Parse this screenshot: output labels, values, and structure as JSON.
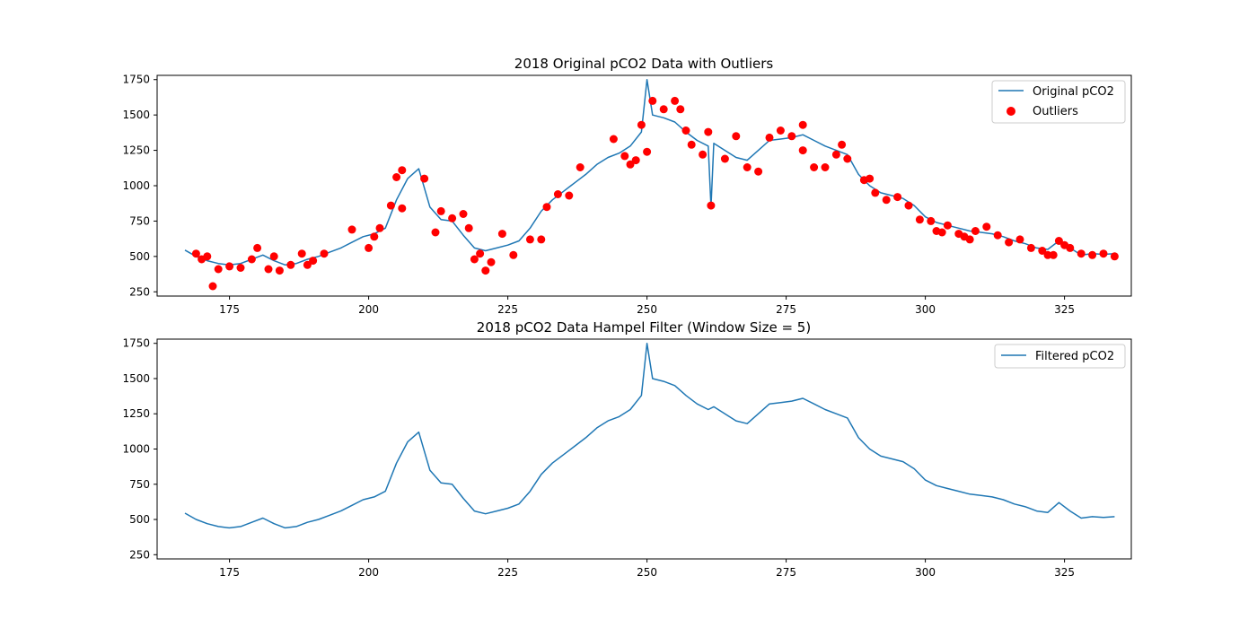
{
  "chart_data": [
    {
      "type": "line",
      "title": "2018 Original pCO2 Data with Outliers",
      "xlabel": "",
      "ylabel": "",
      "xlim": [
        162,
        337
      ],
      "ylim": [
        220,
        1780
      ],
      "xticks": [
        175,
        200,
        225,
        250,
        275,
        300,
        325
      ],
      "yticks": [
        250,
        500,
        750,
        1000,
        1250,
        1500,
        1750
      ],
      "grid": false,
      "legend_position": "top-right",
      "series": [
        {
          "name": "Original pCO2",
          "kind": "line",
          "color": "#1f77b4",
          "points": [
            [
              167,
              545
            ],
            [
              169,
              500
            ],
            [
              171,
              470
            ],
            [
              173,
              450
            ],
            [
              175,
              440
            ],
            [
              177,
              450
            ],
            [
              179,
              480
            ],
            [
              181,
              510
            ],
            [
              183,
              470
            ],
            [
              185,
              440
            ],
            [
              187,
              450
            ],
            [
              189,
              480
            ],
            [
              191,
              500
            ],
            [
              193,
              530
            ],
            [
              195,
              560
            ],
            [
              197,
              600
            ],
            [
              199,
              640
            ],
            [
              201,
              660
            ],
            [
              203,
              700
            ],
            [
              205,
              900
            ],
            [
              207,
              1050
            ],
            [
              209,
              1120
            ],
            [
              211,
              850
            ],
            [
              213,
              760
            ],
            [
              215,
              750
            ],
            [
              217,
              650
            ],
            [
              219,
              560
            ],
            [
              221,
              540
            ],
            [
              223,
              560
            ],
            [
              225,
              580
            ],
            [
              227,
              610
            ],
            [
              229,
              700
            ],
            [
              231,
              820
            ],
            [
              233,
              900
            ],
            [
              235,
              960
            ],
            [
              237,
              1020
            ],
            [
              239,
              1080
            ],
            [
              241,
              1150
            ],
            [
              243,
              1200
            ],
            [
              245,
              1230
            ],
            [
              247,
              1280
            ],
            [
              249,
              1380
            ],
            [
              250,
              1750
            ],
            [
              251,
              1500
            ],
            [
              253,
              1480
            ],
            [
              255,
              1450
            ],
            [
              257,
              1380
            ],
            [
              259,
              1320
            ],
            [
              261,
              1280
            ],
            [
              261.5,
              850
            ],
            [
              262,
              1300
            ],
            [
              264,
              1250
            ],
            [
              266,
              1200
            ],
            [
              268,
              1180
            ],
            [
              270,
              1250
            ],
            [
              272,
              1320
            ],
            [
              274,
              1330
            ],
            [
              276,
              1340
            ],
            [
              278,
              1360
            ],
            [
              280,
              1320
            ],
            [
              282,
              1280
            ],
            [
              284,
              1250
            ],
            [
              286,
              1220
            ],
            [
              288,
              1080
            ],
            [
              290,
              1000
            ],
            [
              292,
              950
            ],
            [
              294,
              930
            ],
            [
              296,
              910
            ],
            [
              298,
              860
            ],
            [
              300,
              780
            ],
            [
              302,
              740
            ],
            [
              304,
              720
            ],
            [
              306,
              700
            ],
            [
              308,
              680
            ],
            [
              310,
              670
            ],
            [
              312,
              660
            ],
            [
              314,
              640
            ],
            [
              316,
              610
            ],
            [
              318,
              590
            ],
            [
              320,
              560
            ],
            [
              322,
              550
            ],
            [
              324,
              610
            ],
            [
              326,
              560
            ],
            [
              328,
              510
            ],
            [
              330,
              520
            ],
            [
              332,
              515
            ],
            [
              334,
              520
            ]
          ]
        },
        {
          "name": "Outliers",
          "kind": "scatter",
          "color": "#ff0000",
          "points": [
            [
              169,
              520
            ],
            [
              170,
              480
            ],
            [
              171,
              500
            ],
            [
              172,
              290
            ],
            [
              173,
              410
            ],
            [
              175,
              430
            ],
            [
              177,
              420
            ],
            [
              179,
              480
            ],
            [
              180,
              560
            ],
            [
              182,
              410
            ],
            [
              183,
              500
            ],
            [
              184,
              400
            ],
            [
              186,
              440
            ],
            [
              188,
              520
            ],
            [
              189,
              440
            ],
            [
              190,
              470
            ],
            [
              192,
              520
            ],
            [
              197,
              690
            ],
            [
              200,
              560
            ],
            [
              201,
              640
            ],
            [
              202,
              700
            ],
            [
              204,
              860
            ],
            [
              205,
              1060
            ],
            [
              206,
              840
            ],
            [
              206,
              1110
            ],
            [
              210,
              1050
            ],
            [
              212,
              670
            ],
            [
              213,
              820
            ],
            [
              215,
              770
            ],
            [
              217,
              800
            ],
            [
              218,
              700
            ],
            [
              219,
              480
            ],
            [
              220,
              520
            ],
            [
              221,
              400
            ],
            [
              222,
              460
            ],
            [
              224,
              660
            ],
            [
              226,
              510
            ],
            [
              229,
              620
            ],
            [
              231,
              620
            ],
            [
              232,
              850
            ],
            [
              234,
              940
            ],
            [
              236,
              930
            ],
            [
              238,
              1130
            ],
            [
              244,
              1330
            ],
            [
              246,
              1210
            ],
            [
              247,
              1150
            ],
            [
              248,
              1180
            ],
            [
              249,
              1430
            ],
            [
              250,
              1240
            ],
            [
              251,
              1600
            ],
            [
              253,
              1540
            ],
            [
              255,
              1600
            ],
            [
              256,
              1540
            ],
            [
              257,
              1390
            ],
            [
              258,
              1290
            ],
            [
              260,
              1220
            ],
            [
              261,
              1380
            ],
            [
              261.5,
              860
            ],
            [
              264,
              1190
            ],
            [
              266,
              1350
            ],
            [
              268,
              1130
            ],
            [
              270,
              1100
            ],
            [
              272,
              1340
            ],
            [
              274,
              1390
            ],
            [
              276,
              1350
            ],
            [
              278,
              1430
            ],
            [
              278,
              1250
            ],
            [
              280,
              1130
            ],
            [
              282,
              1130
            ],
            [
              284,
              1220
            ],
            [
              285,
              1290
            ],
            [
              286,
              1190
            ],
            [
              289,
              1040
            ],
            [
              290,
              1050
            ],
            [
              291,
              950
            ],
            [
              293,
              900
            ],
            [
              295,
              920
            ],
            [
              297,
              860
            ],
            [
              299,
              760
            ],
            [
              301,
              750
            ],
            [
              302,
              680
            ],
            [
              303,
              670
            ],
            [
              304,
              720
            ],
            [
              306,
              660
            ],
            [
              307,
              640
            ],
            [
              308,
              620
            ],
            [
              309,
              680
            ],
            [
              311,
              710
            ],
            [
              313,
              650
            ],
            [
              315,
              600
            ],
            [
              317,
              620
            ],
            [
              319,
              560
            ],
            [
              321,
              540
            ],
            [
              322,
              510
            ],
            [
              323,
              510
            ],
            [
              324,
              610
            ],
            [
              325,
              580
            ],
            [
              326,
              560
            ],
            [
              328,
              520
            ],
            [
              330,
              510
            ],
            [
              332,
              520
            ],
            [
              334,
              500
            ]
          ]
        }
      ]
    },
    {
      "type": "line",
      "title": "2018 pCO2 Data Hampel Filter (Window Size = 5)",
      "xlabel": "",
      "ylabel": "",
      "xlim": [
        162,
        337
      ],
      "ylim": [
        220,
        1780
      ],
      "xticks": [
        175,
        200,
        225,
        250,
        275,
        300,
        325
      ],
      "yticks": [
        250,
        500,
        750,
        1000,
        1250,
        1500,
        1750
      ],
      "grid": false,
      "legend_position": "top-right",
      "series": [
        {
          "name": "Filtered pCO2",
          "kind": "line",
          "color": "#1f77b4",
          "points": [
            [
              167,
              545
            ],
            [
              169,
              500
            ],
            [
              171,
              470
            ],
            [
              173,
              450
            ],
            [
              175,
              440
            ],
            [
              177,
              450
            ],
            [
              179,
              480
            ],
            [
              181,
              510
            ],
            [
              183,
              470
            ],
            [
              185,
              440
            ],
            [
              187,
              450
            ],
            [
              189,
              480
            ],
            [
              191,
              500
            ],
            [
              193,
              530
            ],
            [
              195,
              560
            ],
            [
              197,
              600
            ],
            [
              199,
              640
            ],
            [
              201,
              660
            ],
            [
              203,
              700
            ],
            [
              205,
              900
            ],
            [
              207,
              1050
            ],
            [
              209,
              1120
            ],
            [
              211,
              850
            ],
            [
              213,
              760
            ],
            [
              215,
              750
            ],
            [
              217,
              650
            ],
            [
              219,
              560
            ],
            [
              221,
              540
            ],
            [
              223,
              560
            ],
            [
              225,
              580
            ],
            [
              227,
              610
            ],
            [
              229,
              700
            ],
            [
              231,
              820
            ],
            [
              233,
              900
            ],
            [
              235,
              960
            ],
            [
              237,
              1020
            ],
            [
              239,
              1080
            ],
            [
              241,
              1150
            ],
            [
              243,
              1200
            ],
            [
              245,
              1230
            ],
            [
              247,
              1280
            ],
            [
              249,
              1380
            ],
            [
              250,
              1750
            ],
            [
              251,
              1500
            ],
            [
              253,
              1480
            ],
            [
              255,
              1450
            ],
            [
              257,
              1380
            ],
            [
              259,
              1320
            ],
            [
              261,
              1280
            ],
            [
              262,
              1300
            ],
            [
              264,
              1250
            ],
            [
              266,
              1200
            ],
            [
              268,
              1180
            ],
            [
              270,
              1250
            ],
            [
              272,
              1320
            ],
            [
              274,
              1330
            ],
            [
              276,
              1340
            ],
            [
              278,
              1360
            ],
            [
              280,
              1320
            ],
            [
              282,
              1280
            ],
            [
              284,
              1250
            ],
            [
              286,
              1220
            ],
            [
              288,
              1080
            ],
            [
              290,
              1000
            ],
            [
              292,
              950
            ],
            [
              294,
              930
            ],
            [
              296,
              910
            ],
            [
              298,
              860
            ],
            [
              300,
              780
            ],
            [
              302,
              740
            ],
            [
              304,
              720
            ],
            [
              306,
              700
            ],
            [
              308,
              680
            ],
            [
              310,
              670
            ],
            [
              312,
              660
            ],
            [
              314,
              640
            ],
            [
              316,
              610
            ],
            [
              318,
              590
            ],
            [
              320,
              560
            ],
            [
              322,
              550
            ],
            [
              324,
              620
            ],
            [
              326,
              560
            ],
            [
              328,
              510
            ],
            [
              330,
              520
            ],
            [
              332,
              515
            ],
            [
              334,
              520
            ]
          ]
        }
      ]
    }
  ]
}
